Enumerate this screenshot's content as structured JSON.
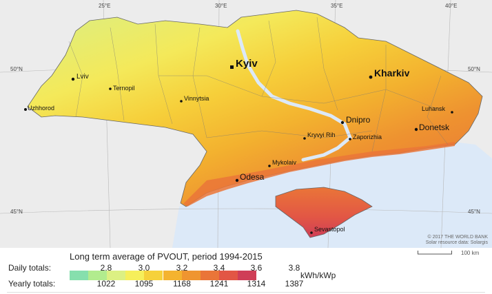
{
  "graticule": {
    "top": [
      "25°E",
      "30°E",
      "35°E",
      "40°E"
    ],
    "left": [
      "50°N",
      "45°N"
    ],
    "right": [
      "50°N",
      "45°N"
    ]
  },
  "cities": [
    {
      "name": "Kyiv",
      "size": "large"
    },
    {
      "name": "Kharkiv",
      "size": "large"
    },
    {
      "name": "Lviv",
      "size": "small"
    },
    {
      "name": "Ternopil",
      "size": "small"
    },
    {
      "name": "Vinnytsia",
      "size": "small"
    },
    {
      "name": "Uzhhorod",
      "size": "small"
    },
    {
      "name": "Luhansk",
      "size": "small"
    },
    {
      "name": "Dnipro",
      "size": "medium"
    },
    {
      "name": "Donetsk",
      "size": "medium"
    },
    {
      "name": "Kryvyi Rih",
      "size": "small"
    },
    {
      "name": "Zaporizhia",
      "size": "small"
    },
    {
      "name": "Mykolaiv",
      "size": "small"
    },
    {
      "name": "Odesa",
      "size": "medium"
    },
    {
      "name": "Sevastopol",
      "size": "small"
    }
  ],
  "legend": {
    "title": "Long term average of PVOUT, period 1994-2015",
    "daily_label": "Daily totals:",
    "yearly_label": "Yearly totals:",
    "daily_values": [
      "2.8",
      "3.0",
      "3.2",
      "3.4",
      "3.6",
      "3.8"
    ],
    "yearly_values": [
      "1022",
      "1095",
      "1168",
      "1241",
      "1314",
      "1387"
    ],
    "unit": "kWh/kWp",
    "colors": [
      "#86dfad",
      "#b2ec8e",
      "#dcf083",
      "#f6ef5b",
      "#f6d13b",
      "#f4b32f",
      "#ef9530",
      "#ea7538",
      "#e25645",
      "#cf3e57"
    ]
  },
  "copyright": {
    "line1": "© 2017 THE WORLD BANK",
    "line2": "Solar resource data: Solargis"
  },
  "scale": {
    "label": "100 km"
  },
  "colors": {
    "water": "#dce9f8",
    "neighbor_land": "#ececec",
    "border": "#666666"
  }
}
